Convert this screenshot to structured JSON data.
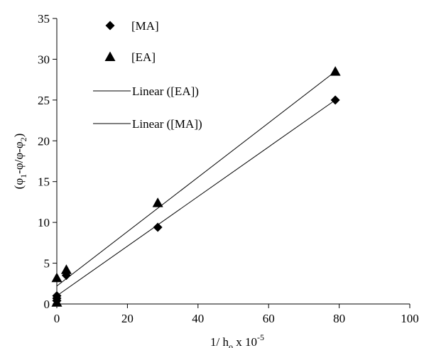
{
  "chart_data": {
    "type": "scatter",
    "title": "",
    "xlabel": {
      "prefix": "1/ h",
      "sub": "o",
      "middle": " x 10",
      "sup": "-5"
    },
    "ylabel": {
      "p1": "(φ",
      "s1": "1",
      "p2": "-φ/φ-φ",
      "s2": "2",
      "p3": ")"
    },
    "xlim": [
      0,
      100
    ],
    "ylim": [
      0,
      35
    ],
    "xticks": [
      0,
      20,
      40,
      60,
      80,
      100
    ],
    "yticks": [
      0,
      5,
      10,
      15,
      20,
      25,
      30,
      35
    ],
    "grid": false,
    "legend_position": "top-left",
    "series": [
      {
        "name": "[MA]",
        "marker": "diamond",
        "color": "#000000",
        "x": [
          0,
          0,
          0,
          2.7,
          28.6,
          78.9
        ],
        "y": [
          0.4,
          0.7,
          1.0,
          3.5,
          9.4,
          25.0
        ]
      },
      {
        "name": "[EA]",
        "marker": "triangle",
        "color": "#000000",
        "x": [
          0,
          0,
          2.7,
          28.6,
          78.9
        ],
        "y": [
          0.2,
          3.2,
          4.2,
          12.4,
          28.5
        ]
      }
    ],
    "trendlines": [
      {
        "name": "Linear ([EA])",
        "x": [
          0,
          78.9
        ],
        "y": [
          2.2,
          28.5
        ]
      },
      {
        "name": "Linear ([MA])",
        "x": [
          0,
          78.9
        ],
        "y": [
          1.0,
          25.0
        ]
      }
    ]
  }
}
